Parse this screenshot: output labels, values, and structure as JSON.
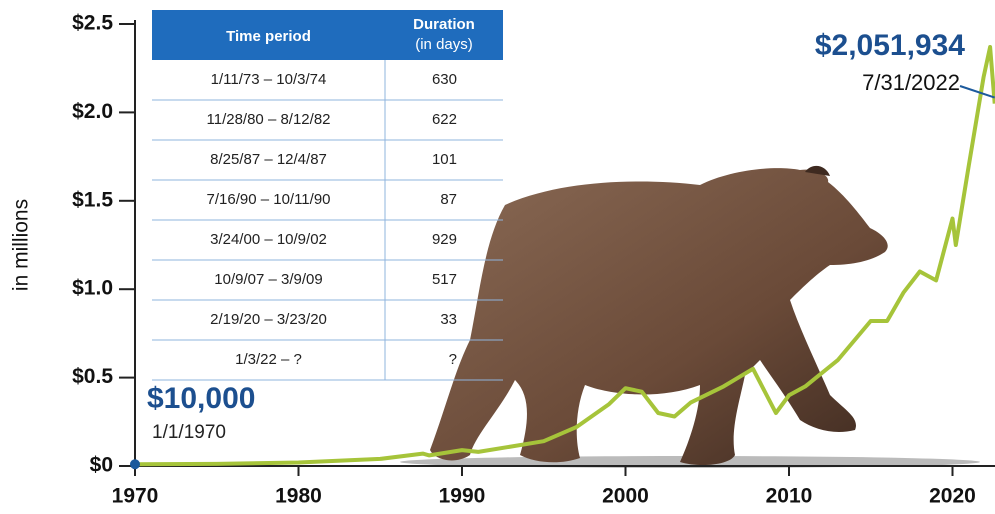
{
  "chart_data": {
    "type": "line",
    "y_label": "in millions",
    "xlim": [
      1970,
      2022.6
    ],
    "xticks": [
      1970,
      1980,
      1990,
      2000,
      2010,
      2020
    ],
    "ylim": [
      0,
      2.5
    ],
    "yticks": [
      {
        "value": 0,
        "label": "$0"
      },
      {
        "value": 0.5,
        "label": "$0.5"
      },
      {
        "value": 1,
        "label": "$1.0"
      },
      {
        "value": 1.5,
        "label": "$1.5"
      },
      {
        "value": 2,
        "label": "$2.0"
      },
      {
        "value": 2.5,
        "label": "$2.5"
      }
    ],
    "series": [
      {
        "color": "#a6c43a",
        "x": [
          1970,
          1975,
          1980,
          1985,
          1987.6,
          1988,
          1990,
          1991,
          1995,
          1997,
          1999,
          2000,
          2001,
          2002,
          2003,
          2004,
          2006,
          2007.8,
          2009.2,
          2010,
          2011,
          2013,
          2015,
          2016,
          2017,
          2018,
          2019,
          2020,
          2020.2,
          2021,
          2021.9,
          2022.3,
          2022.58
        ],
        "values": [
          0.01,
          0.012,
          0.02,
          0.04,
          0.07,
          0.06,
          0.09,
          0.08,
          0.14,
          0.22,
          0.35,
          0.44,
          0.42,
          0.3,
          0.28,
          0.36,
          0.45,
          0.55,
          0.3,
          0.4,
          0.45,
          0.6,
          0.82,
          0.82,
          0.98,
          1.1,
          1.05,
          1.4,
          1.25,
          1.7,
          2.2,
          2.37,
          2.05
        ]
      }
    ],
    "start_annotation": {
      "value": "$10,000",
      "date": "1/1/1970"
    },
    "end_annotation": {
      "value": "$2,051,934",
      "date": "7/31/2022"
    },
    "table": {
      "columns": [
        {
          "title": "Time period"
        },
        {
          "title": "Duration",
          "subtitle": "(in days)"
        }
      ],
      "rows": [
        [
          "1/11/73 – 10/3/74",
          "630"
        ],
        [
          "11/28/80 – 8/12/82",
          "622"
        ],
        [
          "8/25/87 – 12/4/87",
          "101"
        ],
        [
          "7/16/90 – 10/11/90",
          "87"
        ],
        [
          "3/24/00 – 10/9/02",
          "929"
        ],
        [
          "10/9/07 – 3/9/09",
          "517"
        ],
        [
          "2/19/20 – 3/23/20",
          "33"
        ],
        [
          "1/3/22 – ?",
          "?"
        ]
      ]
    }
  }
}
